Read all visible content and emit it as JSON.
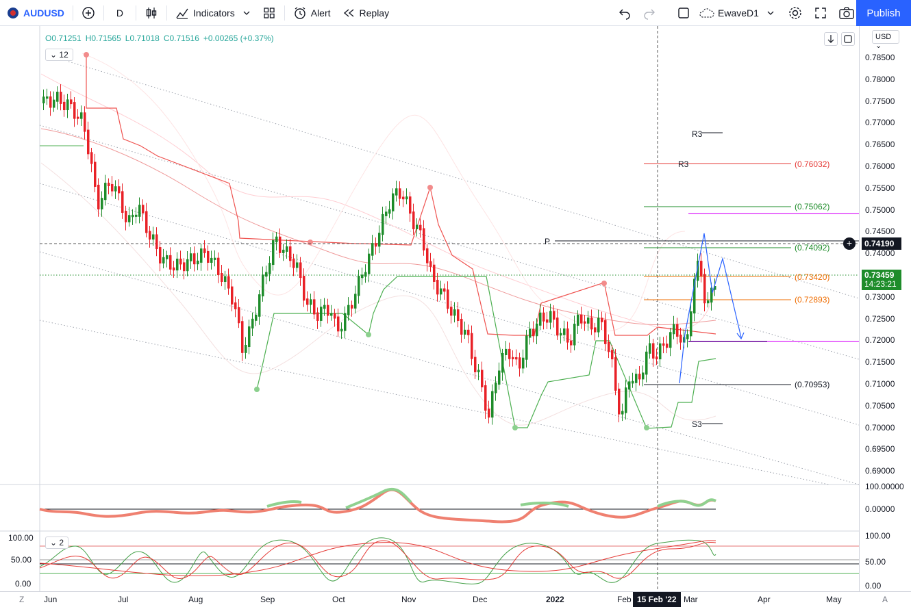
{
  "toolbar": {
    "symbol": "AUDUSD",
    "interval": "D",
    "indicators_label": "Indicators",
    "alert_label": "Alert",
    "replay_label": "Replay",
    "layout_name": "EwaveD1",
    "publish_label": "Publish"
  },
  "legend": {
    "open": "O0.71251",
    "high": "H0.71565",
    "low": "L0.71018",
    "close": "C0.71516",
    "change": "+0.00265 (+0.37%)"
  },
  "pane_badges": {
    "main": "12",
    "osc": "2"
  },
  "price_axis": {
    "currency": "USD",
    "ticks": [
      "0.78500",
      "0.78000",
      "0.77500",
      "0.77000",
      "0.76500",
      "0.76000",
      "0.75500",
      "0.75000",
      "0.74500",
      "0.74000",
      "0.73500",
      "0.73000",
      "0.72500",
      "0.72000",
      "0.71500",
      "0.71000",
      "0.70500",
      "0.70000",
      "0.69500",
      "0.69000"
    ],
    "crosshair_price": "0.74190",
    "last_price": "0.73459",
    "countdown": "14:23:21",
    "osc1_ticks": [
      "100.00000",
      "0.00000"
    ],
    "osc2_ticks": [
      "100.00",
      "50.00",
      "0.00"
    ],
    "osc2_left_ticks": [
      "100.00",
      "50.00",
      "0.00"
    ]
  },
  "time_axis": {
    "labels": [
      "Jun",
      "Jul",
      "Aug",
      "Sep",
      "Oct",
      "Nov",
      "Dec",
      "2022",
      "Feb",
      "Mar",
      "Apr",
      "May"
    ],
    "crosshair_date": "15 Feb '22",
    "left_btn": "Z",
    "right_btn": "A"
  },
  "levels": {
    "r3_a": "R3",
    "r3_b": "R3",
    "p": "P",
    "s3": "S3",
    "l1": "(0.76032)",
    "l2": "(0.75062)",
    "l3": "(0.74092)",
    "l4": "(0.73420)",
    "l5": "(0.72893)",
    "l6": "(0.70953)"
  },
  "colors": {
    "up": "#26a69a",
    "candle_up": "#1e8c2a",
    "candle_down": "#e82127",
    "accent": "#2962ff"
  }
}
